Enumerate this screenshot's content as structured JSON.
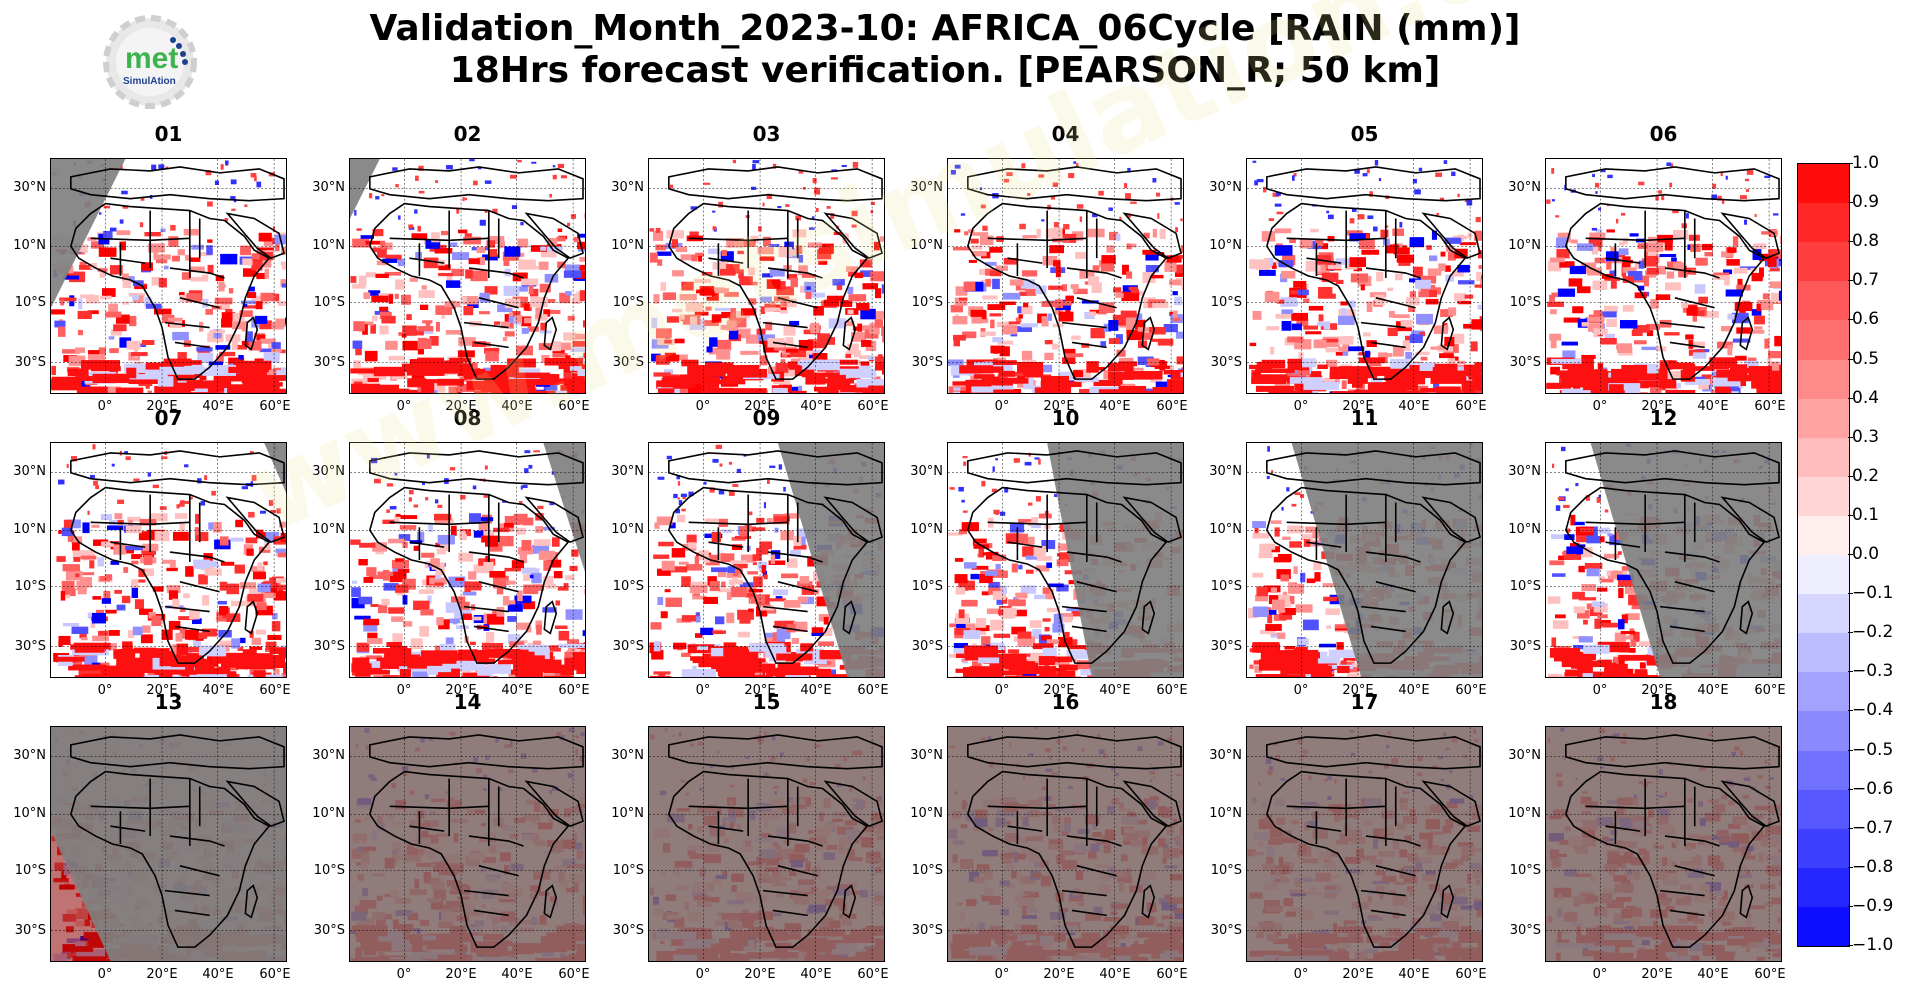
{
  "title": {
    "line1": "Validation_Month_2023-10: AFRICA_06Cycle [RAIN (mm)]",
    "line2": "18Hrs forecast verification.  [PEARSON_R; 50 km]"
  },
  "logo": {
    "text_main": "met",
    "text_sub": "SimulAtion"
  },
  "watermark": "www.metsimulation.com",
  "axes": {
    "y_ticks": [
      "30°N",
      "10°N",
      "10°S",
      "30°S"
    ],
    "x_ticks": [
      "0°",
      "20°E",
      "40°E",
      "60°E"
    ]
  },
  "panels": [
    {
      "label": "01",
      "gray_mask": "west",
      "dark": false
    },
    {
      "label": "02",
      "gray_mask": "west-small",
      "dark": false
    },
    {
      "label": "03",
      "gray_mask": "none",
      "dark": false
    },
    {
      "label": "04",
      "gray_mask": "none",
      "dark": false
    },
    {
      "label": "05",
      "gray_mask": "none",
      "dark": false
    },
    {
      "label": "06",
      "gray_mask": "none",
      "dark": false
    },
    {
      "label": "07",
      "gray_mask": "east-small",
      "dark": false
    },
    {
      "label": "08",
      "gray_mask": "east",
      "dark": false
    },
    {
      "label": "09",
      "gray_mask": "east-wide",
      "dark": false
    },
    {
      "label": "10",
      "gray_mask": "east-half",
      "dark": false
    },
    {
      "label": "11",
      "gray_mask": "most",
      "dark": false
    },
    {
      "label": "12",
      "gray_mask": "most",
      "dark": false
    },
    {
      "label": "13",
      "gray_mask": "all-but-west",
      "dark": true
    },
    {
      "label": "14",
      "gray_mask": "all",
      "dark": true
    },
    {
      "label": "15",
      "gray_mask": "all",
      "dark": true
    },
    {
      "label": "16",
      "gray_mask": "all",
      "dark": true
    },
    {
      "label": "17",
      "gray_mask": "all",
      "dark": true
    },
    {
      "label": "18",
      "gray_mask": "all",
      "dark": true
    }
  ],
  "colorbar": {
    "ticks": [
      "1.0",
      "0.9",
      "0.8",
      "0.7",
      "0.6",
      "0.5",
      "0.4",
      "0.3",
      "0.2",
      "0.1",
      "0.0",
      "−0.1",
      "−0.2",
      "−0.3",
      "−0.4",
      "−0.5",
      "−0.6",
      "−0.7",
      "−0.8",
      "−0.9",
      "−1.0"
    ],
    "colors_top_to_bottom": [
      "#ff0d0d",
      "#ff2626",
      "#ff3f3f",
      "#ff5858",
      "#ff7171",
      "#ff8a8a",
      "#ffa3a3",
      "#ffbcbc",
      "#ffd5d5",
      "#ffeeee",
      "#eeeeff",
      "#d5d5ff",
      "#bcbcff",
      "#a3a3ff",
      "#8a8aff",
      "#7171ff",
      "#5858ff",
      "#3f3fff",
      "#2626ff",
      "#0d0dff"
    ]
  },
  "colors": {
    "gray_mask": "#808080",
    "dark_overlay": "#8b0000"
  }
}
